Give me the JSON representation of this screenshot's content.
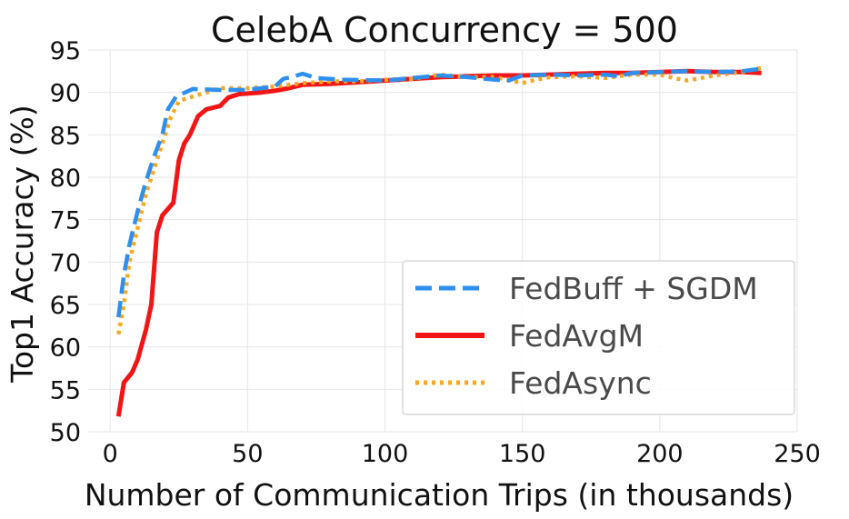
{
  "chart_data": {
    "type": "line",
    "title": "CelebA Concurrency = 500",
    "xlabel": "Number of Communication Trips (in thousands)",
    "ylabel": "Top1 Accuracy (%)",
    "xlim": [
      -8,
      250
    ],
    "ylim": [
      50,
      95
    ],
    "xticks": [
      0,
      50,
      100,
      150,
      200,
      250
    ],
    "yticks": [
      50,
      55,
      60,
      65,
      70,
      75,
      80,
      85,
      90,
      95
    ],
    "grid": true,
    "legend_position": "lower-right",
    "series": [
      {
        "name": "FedBuff + SGDM",
        "color": "#2e8fef",
        "style": "dashed",
        "points": [
          [
            3,
            63.5
          ],
          [
            5,
            68.5
          ],
          [
            7,
            72
          ],
          [
            10,
            76
          ],
          [
            13,
            79.5
          ],
          [
            16,
            82.5
          ],
          [
            19,
            85
          ],
          [
            21,
            88
          ],
          [
            24,
            89.5
          ],
          [
            30,
            90.4
          ],
          [
            40,
            90.3
          ],
          [
            50,
            90.3
          ],
          [
            60,
            90.7
          ],
          [
            63,
            91.6
          ],
          [
            66,
            91.8
          ],
          [
            70,
            92.2
          ],
          [
            75,
            91.7
          ],
          [
            85,
            91.5
          ],
          [
            100,
            91.4
          ],
          [
            110,
            91.7
          ],
          [
            120,
            92
          ],
          [
            130,
            91.8
          ],
          [
            140,
            91.5
          ],
          [
            145,
            91.4
          ],
          [
            150,
            92
          ],
          [
            160,
            92.1
          ],
          [
            170,
            92
          ],
          [
            180,
            92.1
          ],
          [
            185,
            91.9
          ],
          [
            190,
            92.3
          ],
          [
            200,
            92.4
          ],
          [
            210,
            92.5
          ],
          [
            220,
            92.4
          ],
          [
            230,
            92.5
          ],
          [
            237,
            92.8
          ]
        ]
      },
      {
        "name": "FedAvgM",
        "color": "#f21515",
        "style": "solid",
        "points": [
          [
            3,
            51.8
          ],
          [
            5,
            55.8
          ],
          [
            8,
            57
          ],
          [
            10,
            58.5
          ],
          [
            13,
            62
          ],
          [
            15,
            65
          ],
          [
            17,
            73.5
          ],
          [
            19,
            75.5
          ],
          [
            23,
            77
          ],
          [
            25,
            82
          ],
          [
            27,
            84
          ],
          [
            29,
            85
          ],
          [
            32,
            87.2
          ],
          [
            35,
            88
          ],
          [
            40,
            88.4
          ],
          [
            43,
            89.4
          ],
          [
            47,
            89.8
          ],
          [
            55,
            90
          ],
          [
            60,
            90.2
          ],
          [
            65,
            90.5
          ],
          [
            70,
            90.9
          ],
          [
            80,
            91
          ],
          [
            90,
            91.2
          ],
          [
            100,
            91.4
          ],
          [
            110,
            91.6
          ],
          [
            120,
            91.8
          ],
          [
            130,
            91.9
          ],
          [
            140,
            92
          ],
          [
            150,
            92
          ],
          [
            160,
            92.1
          ],
          [
            170,
            92.2
          ],
          [
            180,
            92.3
          ],
          [
            190,
            92.3
          ],
          [
            200,
            92.4
          ],
          [
            210,
            92.5
          ],
          [
            220,
            92.4
          ],
          [
            230,
            92.4
          ],
          [
            237,
            92.3
          ]
        ]
      },
      {
        "name": "FedAsync",
        "color": "#f7a823",
        "style": "dotted",
        "points": [
          [
            3,
            61.5
          ],
          [
            5,
            65
          ],
          [
            7,
            70
          ],
          [
            10,
            74
          ],
          [
            13,
            78
          ],
          [
            16,
            81
          ],
          [
            19,
            84
          ],
          [
            22,
            87
          ],
          [
            25,
            89
          ],
          [
            30,
            89.5
          ],
          [
            35,
            90
          ],
          [
            40,
            90.5
          ],
          [
            50,
            90.5
          ],
          [
            60,
            90.7
          ],
          [
            70,
            91.1
          ],
          [
            80,
            91.3
          ],
          [
            90,
            91.3
          ],
          [
            100,
            91.5
          ],
          [
            110,
            91.6
          ],
          [
            120,
            92.1
          ],
          [
            130,
            91.8
          ],
          [
            140,
            91.8
          ],
          [
            150,
            91.1
          ],
          [
            155,
            91.5
          ],
          [
            160,
            91.8
          ],
          [
            170,
            91.9
          ],
          [
            180,
            91.7
          ],
          [
            190,
            92.1
          ],
          [
            200,
            92.1
          ],
          [
            205,
            91.7
          ],
          [
            210,
            91.4
          ],
          [
            220,
            92
          ],
          [
            230,
            92.4
          ],
          [
            237,
            92.9
          ]
        ]
      }
    ]
  }
}
